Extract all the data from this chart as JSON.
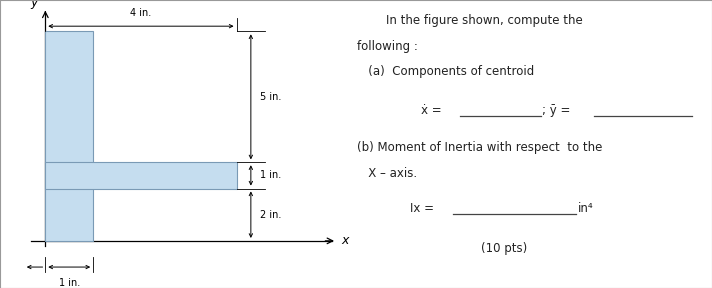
{
  "fig_width": 7.12,
  "fig_height": 2.88,
  "dpi": 100,
  "bg_color": "#ffffff",
  "left_panel": {
    "shape_color": "#c5ddef",
    "shape_edge_color": "#7a9ab5",
    "xlim": [
      -0.8,
      6.5
    ],
    "ylim": [
      -1.8,
      9.2
    ],
    "dim_4in_label": "4 in.",
    "dim_5in_label": "5 in.",
    "dim_1in_label": "1 in.",
    "dim_2in_label": "2 in.",
    "dim_1in_bottom_label": "1 in.",
    "xlabel": "x",
    "ylabel": "y"
  },
  "right_panel": {
    "line1": "In the figure shown, compute the",
    "line2": "following :",
    "line3a": "   (a)  Components of centroid",
    "xbar_label": "ẋ =",
    "ybar_label": "; ȳ =",
    "line_b1": "(b) Moment of Inertia with respect  to the",
    "line_b2": "   X – axis.",
    "ix_label": "Ix =",
    "ix_unit": "in⁴",
    "pts_label": "(10 pts)"
  }
}
